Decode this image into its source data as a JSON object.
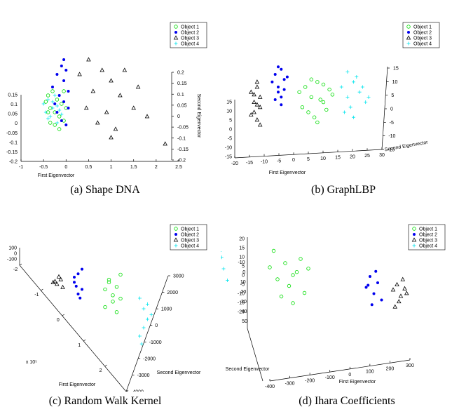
{
  "colors": {
    "object1": "#00dd00",
    "object2": "#0000ee",
    "object3": "#000000",
    "object4": "#00e5ee"
  },
  "legend": {
    "object1": "Object 1",
    "object2": "Object 2",
    "object3": "Object 3",
    "object4": "Object 4"
  },
  "captions": {
    "a": "(a) Shape DNA",
    "b": "(b) GraphLBP",
    "c": "(c) Random Walk Kernel",
    "d": "(d) Ihara Coefficients"
  },
  "chart_data": [
    {
      "type": "scatter",
      "title": "",
      "xlabel": "First Eigenvector",
      "ylabel": "Second Eigenvector",
      "x_ticks": [
        "-1",
        "-0.5",
        "0",
        "0.5",
        "1",
        "1.5",
        "2",
        "2.5"
      ],
      "y_ticks_left": [
        "0.15",
        "0.1",
        "0.05",
        "0",
        "-0.05",
        "-0.1",
        "-0.15",
        "-0.2"
      ],
      "y_ticks_right": [
        "0.2",
        "0.15",
        "0.1",
        "0.05",
        "0",
        "-0.05",
        "-0.1",
        "-0.15",
        "-0.2"
      ],
      "legend_placement": "top-right",
      "series": [
        {
          "name": "Object 1",
          "marker": "circle",
          "points": [
            [
              -0.45,
              0.15
            ],
            [
              -0.4,
              0.18
            ],
            [
              -0.35,
              0.12
            ],
            [
              -0.3,
              0.2
            ],
            [
              -0.25,
              0.1
            ],
            [
              -0.2,
              0.16
            ],
            [
              -0.15,
              0.08
            ],
            [
              -0.1,
              0.14
            ],
            [
              -0.05,
              0.2
            ],
            [
              -0.35,
              0.05
            ],
            [
              -0.25,
              0.04
            ],
            [
              -0.15,
              0.02
            ],
            [
              -0.05,
              0.06
            ],
            [
              0.0,
              0.12
            ],
            [
              -0.4,
              0.1
            ]
          ]
        },
        {
          "name": "Object 2",
          "marker": "dot",
          "points": [
            [
              -0.3,
              0.22
            ],
            [
              -0.2,
              0.28
            ],
            [
              -0.1,
              0.32
            ],
            [
              -0.05,
              0.25
            ],
            [
              0.0,
              0.3
            ],
            [
              -0.15,
              0.18
            ],
            [
              -0.05,
              0.15
            ],
            [
              0.05,
              0.2
            ],
            [
              -0.2,
              0.1
            ],
            [
              -0.1,
              0.06
            ],
            [
              0.0,
              0.04
            ],
            [
              -0.25,
              0.14
            ],
            [
              -0.05,
              0.35
            ],
            [
              0.05,
              0.12
            ]
          ]
        },
        {
          "name": "Object 3",
          "marker": "triangle",
          "points": [
            [
              0.5,
              0.35
            ],
            [
              0.8,
              0.3
            ],
            [
              1.0,
              0.25
            ],
            [
              0.6,
              0.2
            ],
            [
              1.2,
              0.18
            ],
            [
              0.9,
              0.1
            ],
            [
              1.5,
              0.12
            ],
            [
              0.7,
              0.05
            ],
            [
              1.1,
              0.02
            ],
            [
              1.8,
              0.08
            ],
            [
              0.3,
              0.28
            ],
            [
              1.3,
              0.3
            ],
            [
              0.45,
              0.12
            ],
            [
              2.2,
              -0.05
            ],
            [
              1.6,
              0.22
            ],
            [
              1.0,
              -0.02
            ]
          ]
        },
        {
          "name": "Object 4",
          "marker": "plus",
          "points": [
            [
              -0.5,
              0.14
            ],
            [
              -0.45,
              0.1
            ],
            [
              -0.4,
              0.16
            ],
            [
              -0.35,
              0.08
            ],
            [
              -0.3,
              0.12
            ],
            [
              -0.25,
              0.18
            ],
            [
              -0.2,
              0.05
            ],
            [
              -0.15,
              0.11
            ],
            [
              -0.1,
              0.09
            ],
            [
              -0.3,
              0.15
            ],
            [
              -0.2,
              0.13
            ],
            [
              -0.4,
              0.07
            ]
          ]
        }
      ]
    },
    {
      "type": "scatter",
      "title": "",
      "xlabel": "First Eigenvector",
      "ylabel": "Second Eigenvector",
      "x_ticks": [
        "-20",
        "-15",
        "-10",
        "-5",
        "0",
        "5",
        "10",
        "15",
        "20",
        "25",
        "30"
      ],
      "y_ticks_left": [
        "15",
        "10",
        "5",
        "0",
        "-5",
        "-10",
        "-15"
      ],
      "y_ticks_right": [
        "15",
        "10",
        "5",
        "0",
        "-5",
        "-10",
        "-15"
      ],
      "legend_placement": "top-right",
      "series": [
        {
          "name": "Object 1",
          "marker": "circle",
          "points": [
            [
              2,
              8
            ],
            [
              4,
              10
            ],
            [
              6,
              6
            ],
            [
              8,
              12
            ],
            [
              10,
              4
            ],
            [
              12,
              9
            ],
            [
              3,
              2
            ],
            [
              5,
              0
            ],
            [
              7,
              -2
            ],
            [
              9,
              5
            ],
            [
              11,
              1
            ],
            [
              13,
              7
            ],
            [
              6,
              13
            ],
            [
              8,
              -4
            ],
            [
              10,
              11
            ]
          ]
        },
        {
          "name": "Object 2",
          "marker": "dot",
          "points": [
            [
              -7,
              12
            ],
            [
              -6,
              15
            ],
            [
              -5,
              10
            ],
            [
              -4,
              17
            ],
            [
              -3,
              13
            ],
            [
              -5,
              8
            ],
            [
              -4,
              6
            ],
            [
              -6,
              5
            ],
            [
              -3,
              9
            ],
            [
              -2,
              14
            ],
            [
              -5,
              18
            ],
            [
              -4,
              3
            ]
          ]
        },
        {
          "name": "Object 3",
          "marker": "triangle",
          "points": [
            [
              -14,
              8
            ],
            [
              -13,
              4
            ],
            [
              -12,
              10
            ],
            [
              -11,
              2
            ],
            [
              -13,
              0
            ],
            [
              -12,
              -3
            ],
            [
              -11,
              6
            ],
            [
              -14,
              -1
            ],
            [
              -12,
              12
            ],
            [
              -13,
              7
            ],
            [
              -11,
              -5
            ],
            [
              -12,
              3
            ]
          ]
        },
        {
          "name": "Object 4",
          "marker": "plus",
          "points": [
            [
              16,
              10
            ],
            [
              18,
              6
            ],
            [
              20,
              12
            ],
            [
              22,
              8
            ],
            [
              24,
              4
            ],
            [
              19,
              2
            ],
            [
              21,
              14
            ],
            [
              17,
              0
            ],
            [
              23,
              10
            ],
            [
              25,
              6
            ],
            [
              20,
              -2
            ],
            [
              18,
              16
            ]
          ]
        }
      ]
    },
    {
      "type": "scatter",
      "title": "",
      "xlabel": "First Eigenvector",
      "ylabel": "Second Eigenvector",
      "x_exponent": "x 10⁵",
      "x_ticks": [
        "-2",
        "-1",
        "0",
        "1",
        "2",
        "3"
      ],
      "y_ticks": [
        "3000",
        "2000",
        "1000",
        "0",
        "-1000",
        "-2000",
        "-3000",
        "-4000"
      ],
      "z_ticks": [
        "100",
        "0",
        "-100"
      ],
      "legend_placement": "top-right",
      "series": [
        {
          "name": "Object 1",
          "marker": "circle",
          "points": [
            [
              1.0,
              1200
            ],
            [
              1.1,
              2000
            ],
            [
              1.2,
              800
            ],
            [
              1.3,
              1500
            ],
            [
              1.4,
              2500
            ],
            [
              1.2,
              300
            ],
            [
              1.0,
              -200
            ],
            [
              1.3,
              -500
            ],
            [
              1.1,
              1800
            ],
            [
              1.4,
              600
            ]
          ]
        },
        {
          "name": "Object 2",
          "marker": "dot",
          "points": [
            [
              0.2,
              1500
            ],
            [
              0.3,
              2200
            ],
            [
              0.4,
              1000
            ],
            [
              0.3,
              600
            ],
            [
              0.2,
              1900
            ],
            [
              0.4,
              2600
            ],
            [
              0.25,
              1200
            ],
            [
              0.35,
              300
            ]
          ]
        },
        {
          "name": "Object 3",
          "marker": "triangle",
          "points": [
            [
              -0.3,
              1400
            ],
            [
              -0.2,
              1800
            ],
            [
              -0.1,
              1000
            ],
            [
              -0.25,
              1200
            ],
            [
              -0.15,
              1600
            ],
            [
              -0.35,
              1300
            ]
          ]
        },
        {
          "name": "Object 4",
          "marker": "plus",
          "points": [
            [
              1.9,
              800
            ],
            [
              2.0,
              0
            ],
            [
              2.1,
              -800
            ],
            [
              2.0,
              -1500
            ],
            [
              1.9,
              -2200
            ],
            [
              2.2,
              -400
            ],
            [
              2.1,
              400
            ],
            [
              1.95,
              -2800
            ]
          ]
        }
      ]
    },
    {
      "type": "scatter",
      "title": "",
      "xlabel": "First Eigenvector",
      "ylabel": "Second Eigenvector",
      "x_ticks": [
        "-400",
        "-300",
        "-200",
        "-100",
        "0",
        "100",
        "200",
        "300"
      ],
      "y_ticks": [
        "20",
        "15",
        "10",
        "5",
        "0",
        "-5",
        "-10",
        "-15",
        "-20"
      ],
      "z_ticks": [
        "-20",
        "-10",
        "0",
        "10",
        "20",
        "30",
        "40",
        "50"
      ],
      "legend_placement": "top-right",
      "series": [
        {
          "name": "Object 1",
          "marker": "circle",
          "points": [
            [
              -200,
              20
            ],
            [
              -180,
              10
            ],
            [
              -160,
              25
            ],
            [
              -150,
              5
            ],
            [
              -140,
              15
            ],
            [
              -120,
              30
            ],
            [
              -110,
              0
            ],
            [
              -130,
              18
            ],
            [
              -170,
              -5
            ],
            [
              -100,
              22
            ],
            [
              -190,
              35
            ],
            [
              -140,
              -10
            ]
          ]
        },
        {
          "name": "Object 2",
          "marker": "dot",
          "points": [
            [
              50,
              10
            ],
            [
              60,
              20
            ],
            [
              70,
              5
            ],
            [
              80,
              15
            ],
            [
              90,
              0
            ],
            [
              65,
              -5
            ],
            [
              75,
              25
            ],
            [
              55,
              12
            ]
          ]
        },
        {
          "name": "Object 3",
          "marker": "triangle",
          "points": [
            [
              120,
              10
            ],
            [
              130,
              15
            ],
            [
              140,
              5
            ],
            [
              150,
              12
            ],
            [
              135,
              0
            ],
            [
              145,
              20
            ],
            [
              125,
              -5
            ],
            [
              155,
              8
            ]
          ]
        },
        {
          "name": "Object 4",
          "marker": "plus",
          "points": [
            [
              -380,
              10
            ],
            [
              -360,
              20
            ],
            [
              -340,
              0
            ],
            [
              -330,
              30
            ],
            [
              -350,
              -10
            ],
            [
              -320,
              15
            ],
            [
              -370,
              -20
            ],
            [
              -310,
              5
            ],
            [
              -345,
              -30
            ],
            [
              -325,
              25
            ],
            [
              -365,
              35
            ],
            [
              -335,
              -15
            ]
          ]
        }
      ]
    }
  ]
}
